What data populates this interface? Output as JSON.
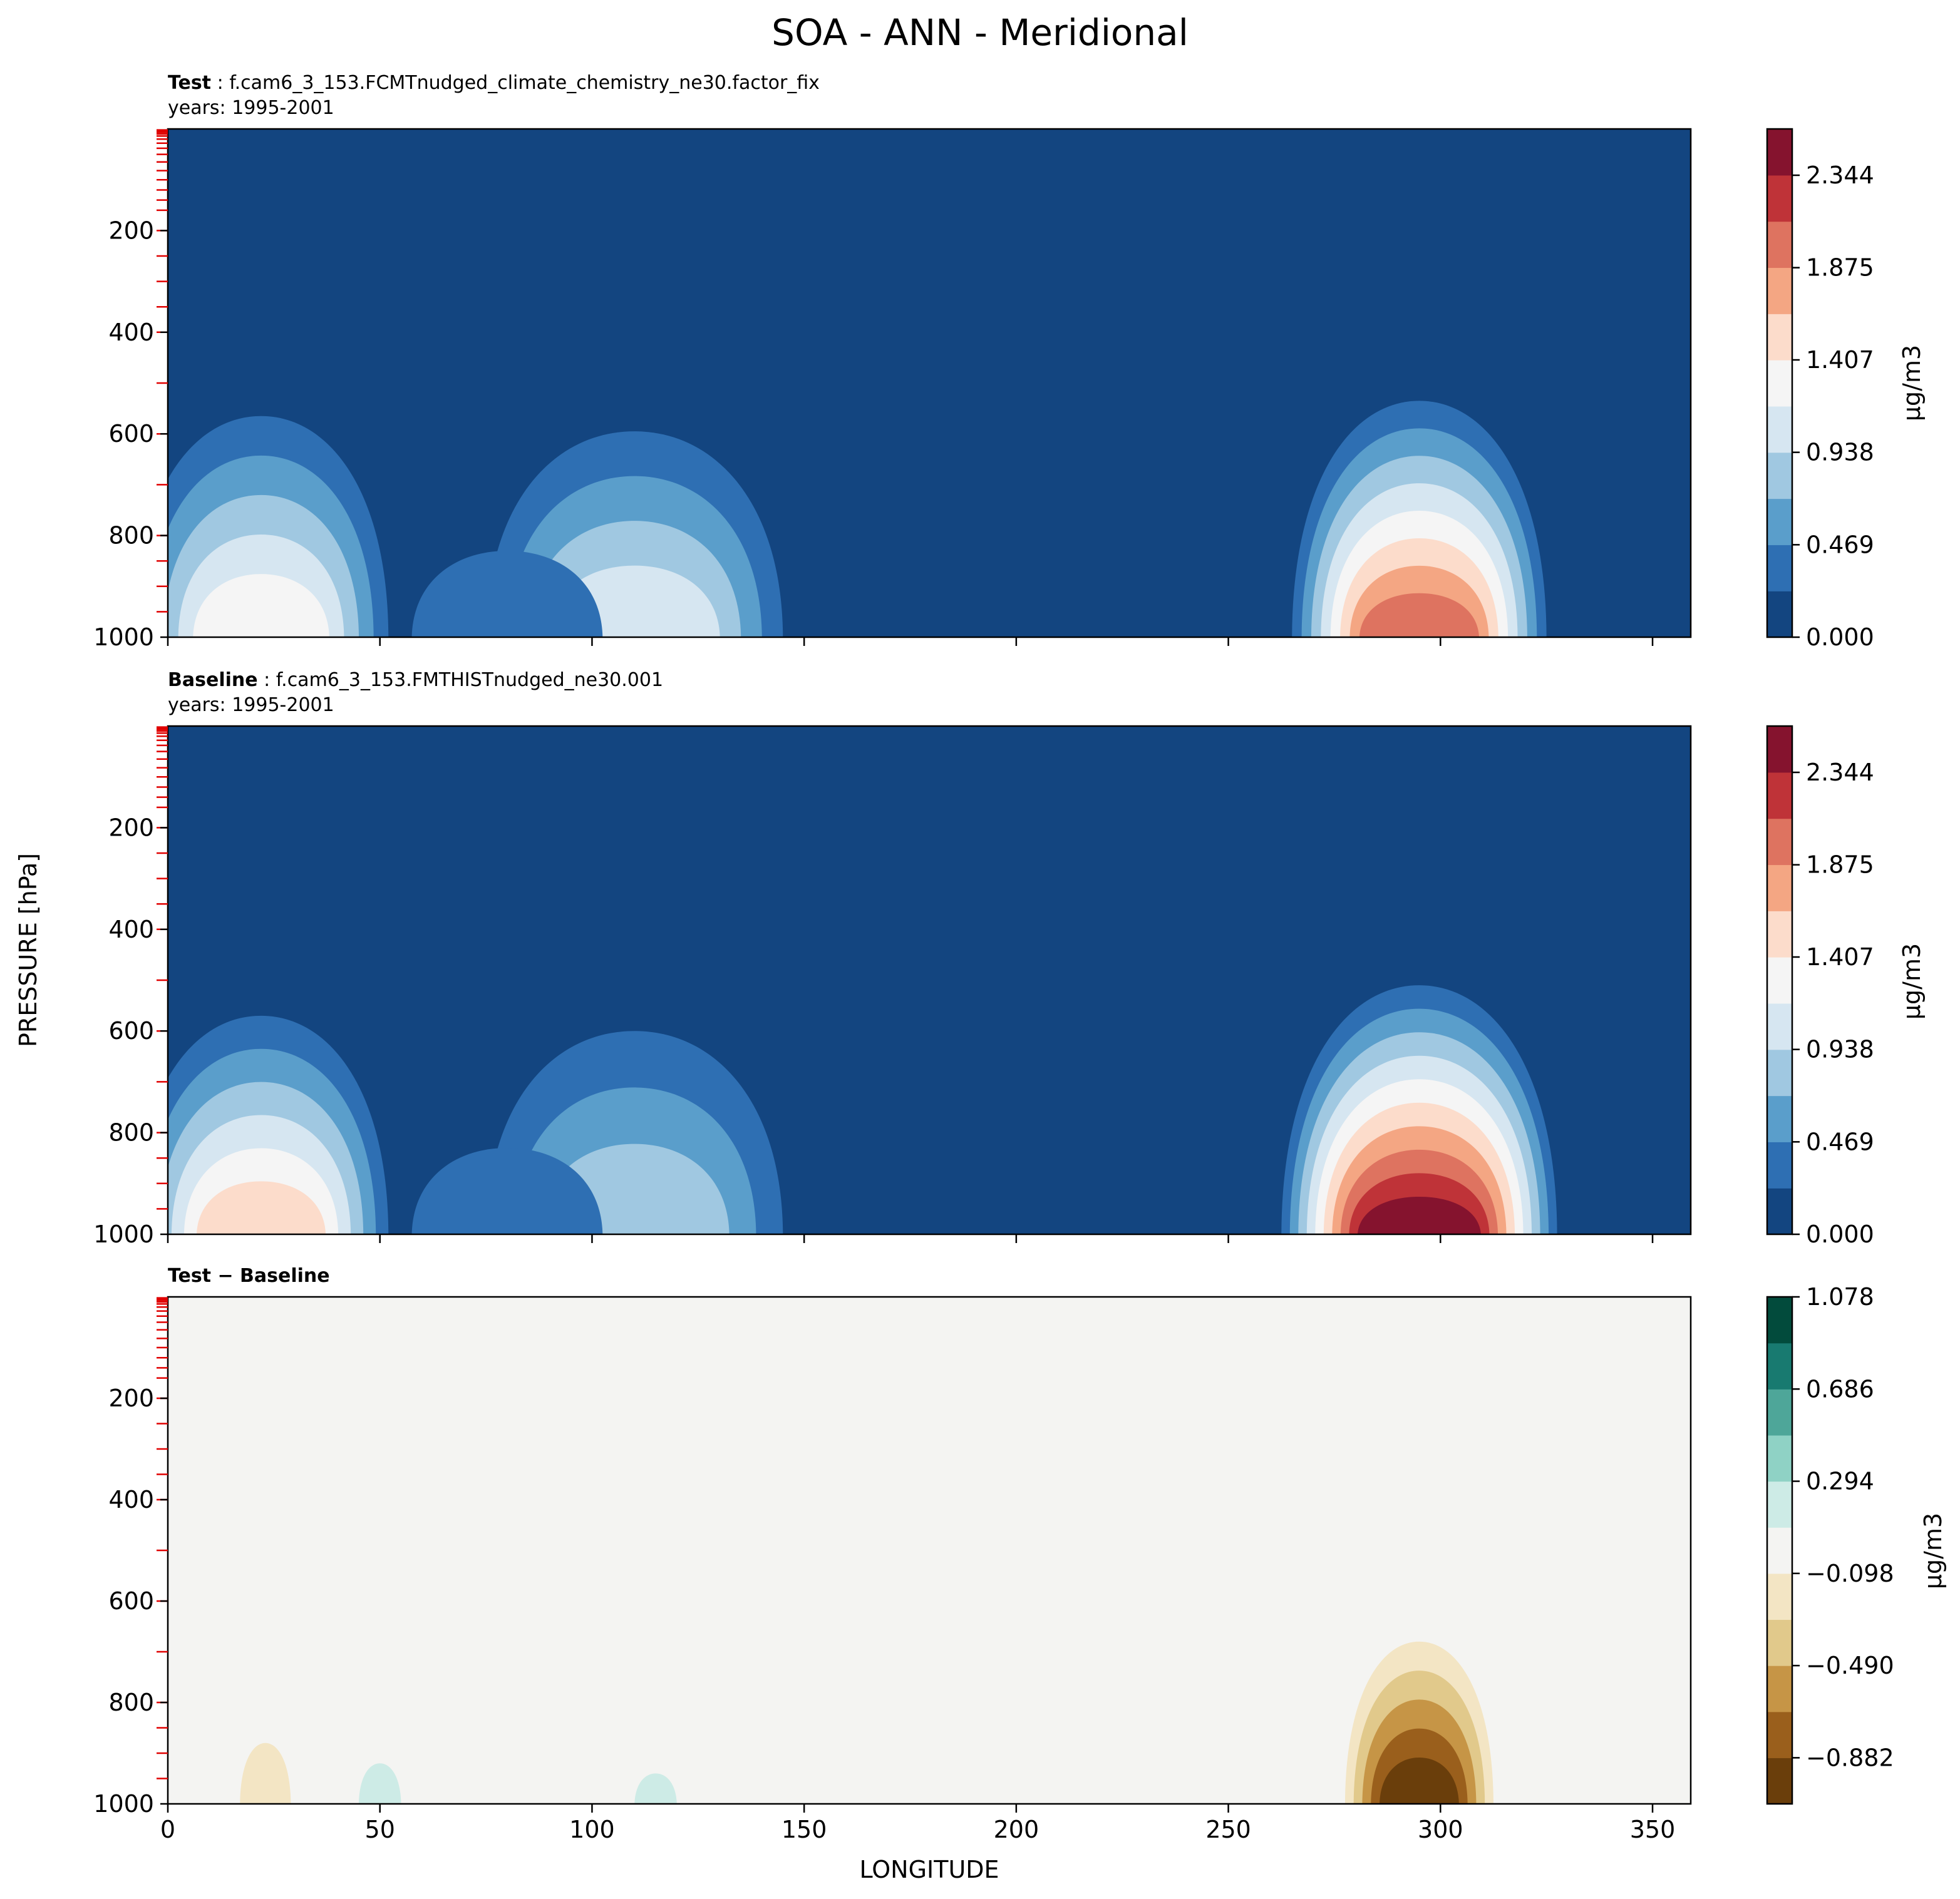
{
  "title": "SOA - ANN - Meridional",
  "ylabel": "PRESSURE [hPa]",
  "xlabel": "LONGITUDE",
  "panels": [
    {
      "label_bold": "Test",
      "label_rest": " : f.cam6_3_153.FCMTnudged_climate_chemistry_ne30.factor_fix",
      "years": "years: 1995-2001",
      "units": "μg/m3"
    },
    {
      "label_bold": "Baseline",
      "label_rest": " : f.cam6_3_153.FMTHISTnudged_ne30.001",
      "years": "years: 1995-2001",
      "units": "μg/m3"
    },
    {
      "label_bold": "Test − Baseline",
      "label_rest": "",
      "years": "",
      "units": "μg/m3"
    }
  ],
  "chart_data": [
    {
      "type": "heatmap",
      "name": "test",
      "xlim": [
        0,
        359
      ],
      "ylim": [
        1000,
        0
      ],
      "xticks": [
        0,
        50,
        100,
        150,
        200,
        250,
        300,
        350
      ],
      "yticks": [
        200,
        400,
        600,
        800,
        1000
      ],
      "colorbar_ticks": [
        "0.000",
        "0.469",
        "0.938",
        "1.407",
        "1.875",
        "2.344"
      ],
      "levels": [
        0,
        0.234,
        0.469,
        0.703,
        0.938,
        1.172,
        1.407,
        1.641,
        1.875,
        2.11,
        2.344,
        2.579
      ],
      "colors": [
        "#134580",
        "#2e6fb3",
        "#5a9ecb",
        "#a0c8e1",
        "#d6e6f1",
        "#f5f5f5",
        "#fcdccb",
        "#f4a683",
        "#de7360",
        "#bf3338",
        "#85132e"
      ],
      "features": [
        {
          "lon": 22,
          "top": 565,
          "width": 60,
          "peak": 1.4
        },
        {
          "lon": 110,
          "top": 595,
          "width": 70,
          "peak": 1.0
        },
        {
          "lon": 80,
          "top": 830,
          "width": 45,
          "peak": 0.3
        },
        {
          "lon": 295,
          "top": 535,
          "width": 60,
          "peak": 2.0
        }
      ]
    },
    {
      "type": "heatmap",
      "name": "baseline",
      "xlim": [
        0,
        359
      ],
      "ylim": [
        1000,
        0
      ],
      "xticks": [
        0,
        50,
        100,
        150,
        200,
        250,
        300,
        350
      ],
      "yticks": [
        200,
        400,
        600,
        800,
        1000
      ],
      "colorbar_ticks": [
        "0.000",
        "0.469",
        "0.938",
        "1.407",
        "1.875",
        "2.344"
      ],
      "levels": [
        0,
        0.234,
        0.469,
        0.703,
        0.938,
        1.172,
        1.407,
        1.641,
        1.875,
        2.11,
        2.344,
        2.579
      ],
      "colors": [
        "#134580",
        "#2e6fb3",
        "#5a9ecb",
        "#a0c8e1",
        "#d6e6f1",
        "#f5f5f5",
        "#fcdccb",
        "#f4a683",
        "#de7360",
        "#bf3338",
        "#85132e"
      ],
      "features": [
        {
          "lon": 22,
          "top": 570,
          "width": 60,
          "peak": 1.5
        },
        {
          "lon": 110,
          "top": 600,
          "width": 70,
          "peak": 0.9
        },
        {
          "lon": 80,
          "top": 830,
          "width": 45,
          "peak": 0.3
        },
        {
          "lon": 295,
          "top": 510,
          "width": 65,
          "peak": 2.55
        }
      ]
    },
    {
      "type": "heatmap",
      "name": "difference",
      "xlim": [
        0,
        359
      ],
      "ylim": [
        1000,
        0
      ],
      "xticks": [
        0,
        50,
        100,
        150,
        200,
        250,
        300,
        350
      ],
      "yticks": [
        200,
        400,
        600,
        800,
        1000
      ],
      "colorbar_ticks": [
        "1.078",
        "0.686",
        "0.294",
        "−0.098",
        "−0.490",
        "−0.882"
      ],
      "levels": [
        -1.078,
        -0.882,
        -0.686,
        -0.49,
        -0.294,
        -0.098,
        0.098,
        0.294,
        0.49,
        0.686,
        0.882,
        1.078
      ],
      "colors": [
        "#6a3e0b",
        "#9a5f1c",
        "#c69546",
        "#e1c98b",
        "#f3e5c4",
        "#f4f4f2",
        "#cdebe6",
        "#8fd2c5",
        "#4ea699",
        "#187a70",
        "#024b3c"
      ],
      "features": [
        {
          "lon": 23,
          "top": 880,
          "width": 12,
          "peak": -0.2
        },
        {
          "lon": 50,
          "top": 920,
          "width": 10,
          "peak": 0.15
        },
        {
          "lon": 115,
          "top": 940,
          "width": 10,
          "peak": 0.12
        },
        {
          "lon": 295,
          "top": 680,
          "width": 35,
          "peak": -1.0
        }
      ]
    }
  ]
}
